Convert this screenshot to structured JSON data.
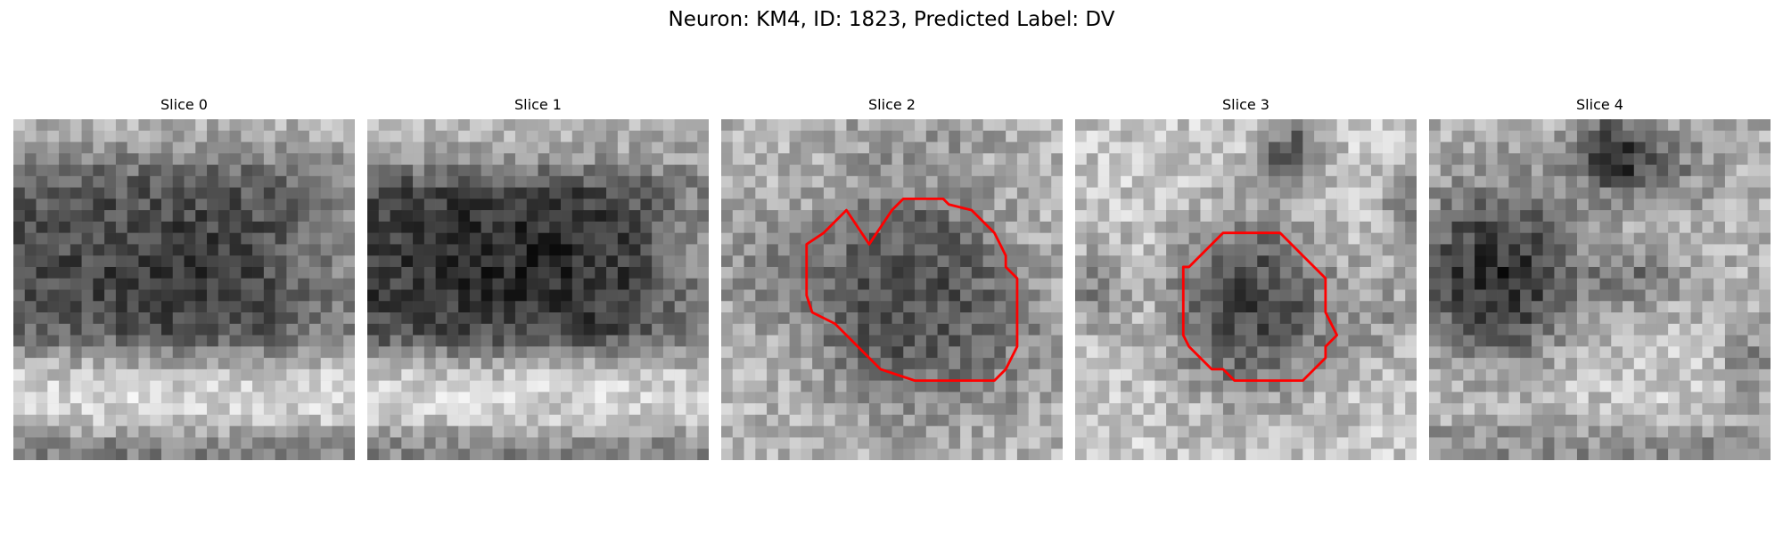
{
  "figure": {
    "title": "Neuron: KM4, ID: 1823, Predicted Label: DV"
  },
  "colors": {
    "contour": "#ff0000",
    "background": "#ffffff"
  },
  "slices": [
    {
      "title": "Slice 0",
      "has_contour": false,
      "description_tags": [
        "grayscale-noise",
        "dark-horizontal-band",
        "bright-lower-band"
      ]
    },
    {
      "title": "Slice 1",
      "has_contour": false,
      "description_tags": [
        "grayscale-noise",
        "dark-horizontal-band",
        "bright-lower-band"
      ]
    },
    {
      "title": "Slice 2",
      "has_contour": true,
      "description_tags": [
        "grayscale-noise",
        "dark-round-blob",
        "red-contour"
      ]
    },
    {
      "title": "Slice 3",
      "has_contour": true,
      "description_tags": [
        "grayscale-noise",
        "dark-round-blob",
        "red-contour"
      ]
    },
    {
      "title": "Slice 4",
      "has_contour": false,
      "description_tags": [
        "grayscale-noise",
        "dark-left-blob"
      ]
    }
  ]
}
